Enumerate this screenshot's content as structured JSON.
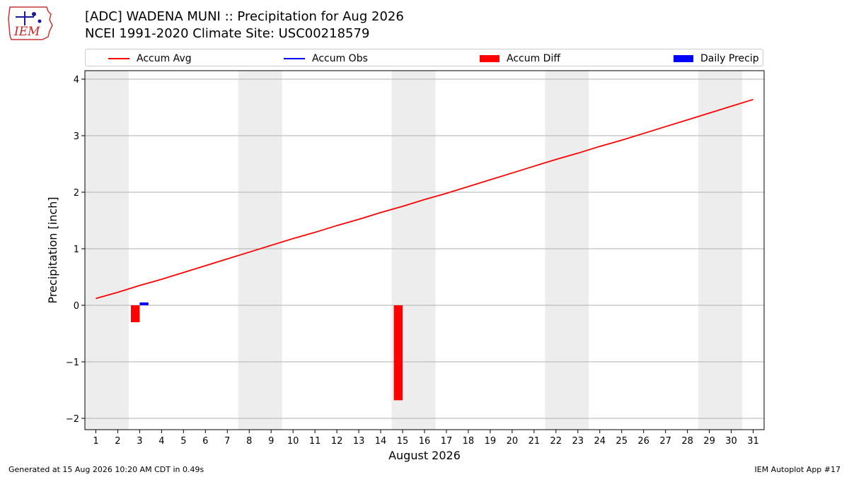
{
  "header": {
    "title_line1": "[ADC] WADENA MUNI :: Precipitation for Aug 2026",
    "title_line2": "NCEI 1991-2020 Climate Site: USC00218579",
    "logo_text": "IEM"
  },
  "legend": {
    "items": [
      {
        "label": "Accum Avg",
        "color": "#ff0000",
        "kind": "line"
      },
      {
        "label": "Accum Obs",
        "color": "#0000ff",
        "kind": "line"
      },
      {
        "label": "Accum Diff",
        "color": "#ff0000",
        "kind": "patch"
      },
      {
        "label": "Daily Precip",
        "color": "#0000ff",
        "kind": "patch"
      }
    ]
  },
  "footer": {
    "left": "Generated at 15 Aug 2026 10:20 AM CDT in 0.49s",
    "right": "IEM Autoplot App #17"
  },
  "chart_data": {
    "type": "line",
    "xlabel": "August 2026",
    "ylabel": "Precipitation [inch]",
    "xlim": [
      0.5,
      31.5
    ],
    "ylim": [
      -2.2,
      4.15
    ],
    "x_ticks": [
      1,
      2,
      3,
      4,
      5,
      6,
      7,
      8,
      9,
      10,
      11,
      12,
      13,
      14,
      15,
      16,
      17,
      18,
      19,
      20,
      21,
      22,
      23,
      24,
      25,
      26,
      27,
      28,
      29,
      30,
      31
    ],
    "y_ticks": [
      -2,
      -1,
      0,
      1,
      2,
      3,
      4
    ],
    "grid": "horizontal",
    "weekend_shading": [
      [
        0.5,
        2.5
      ],
      [
        7.5,
        9.5
      ],
      [
        14.5,
        16.5
      ],
      [
        21.5,
        23.5
      ],
      [
        28.5,
        30.5
      ]
    ],
    "series": [
      {
        "name": "Accum Avg",
        "kind": "line",
        "color": "#ff0000",
        "x": [
          1,
          2,
          3,
          4,
          5,
          6,
          7,
          8,
          9,
          10,
          11,
          12,
          13,
          14,
          15,
          16,
          17,
          18,
          19,
          20,
          21,
          22,
          23,
          24,
          25,
          26,
          27,
          28,
          29,
          30,
          31
        ],
        "values": [
          0.12,
          0.23,
          0.35,
          0.46,
          0.58,
          0.7,
          0.82,
          0.94,
          1.06,
          1.18,
          1.29,
          1.41,
          1.52,
          1.64,
          1.75,
          1.87,
          1.98,
          2.1,
          2.22,
          2.34,
          2.46,
          2.58,
          2.69,
          2.81,
          2.92,
          3.04,
          3.16,
          3.28,
          3.4,
          3.52,
          3.64
        ]
      },
      {
        "name": "Accum Diff",
        "kind": "bar",
        "color": "#ff0000",
        "x": [
          3,
          15
        ],
        "values": [
          -0.3,
          -1.68
        ]
      },
      {
        "name": "Daily Precip",
        "kind": "bar",
        "color": "#0000ff",
        "x": [
          3
        ],
        "values": [
          0.05
        ]
      }
    ]
  }
}
